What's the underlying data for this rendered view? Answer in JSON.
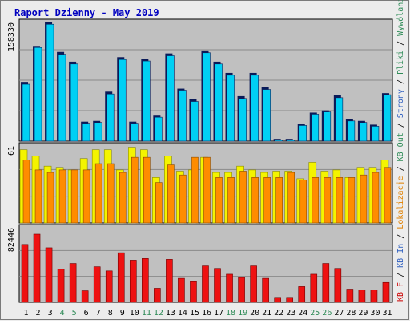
{
  "chart_title": "Raport Dzienny -  May 2019",
  "colors": {
    "background": "#ececec",
    "plot_bg": "#c0c0c0",
    "frame": "#000000",
    "title": "#0000c0",
    "grid": "#8a8a8a",
    "dark_blue": "#0a1a58",
    "cyan": "#00d0f4",
    "yellow": "#f4f400",
    "orange": "#ff8c00",
    "red": "#ee1111",
    "text_red": "#cc0000",
    "text_orange": "#e08000",
    "text_blue": "#3060c0",
    "text_green": "#2e8b57"
  },
  "right_legend": [
    {
      "text": "Wywólania",
      "color_key": "text_green"
    },
    {
      "text": " / ",
      "color_key": "frame"
    },
    {
      "text": "Pliki",
      "color_key": "text_green"
    },
    {
      "text": " / ",
      "color_key": "frame"
    },
    {
      "text": "Strony",
      "color_key": "text_blue"
    },
    {
      "text": " / ",
      "color_key": "frame"
    },
    {
      "text": "KB Out",
      "color_key": "text_green"
    },
    {
      "text": " / ",
      "color_key": "frame"
    },
    {
      "text": "Lokalizacje",
      "color_key": "text_orange"
    },
    {
      "text": " / ",
      "color_key": "frame"
    },
    {
      "text": "KB In",
      "color_key": "text_blue"
    },
    {
      "text": " / ",
      "color_key": "frame"
    },
    {
      "text": "KB F",
      "color_key": "text_red"
    }
  ],
  "chart_data": {
    "type": "bar",
    "title": "Raport Dzienny -  May 2019",
    "categories": [
      "1",
      "2",
      "3",
      "4",
      "5",
      "6",
      "7",
      "8",
      "9",
      "10",
      "11",
      "12",
      "13",
      "14",
      "15",
      "16",
      "17",
      "18",
      "19",
      "20",
      "21",
      "22",
      "23",
      "24",
      "25",
      "26",
      "27",
      "28",
      "29",
      "30",
      "31"
    ],
    "weekend_days": [
      "4",
      "5",
      "11",
      "12",
      "18",
      "19",
      "25",
      "26"
    ],
    "panels": [
      {
        "id": "top",
        "axis_label": "158330",
        "ylim": [
          0,
          158330
        ],
        "series": [
          {
            "values": [
              79000,
              127000,
              158330,
              119000,
              106000,
              26000,
              27000,
              66000,
              112000,
              26000,
              110000,
              34000,
              117000,
              70000,
              56000,
              121000,
              106000,
              91000,
              60000,
              91000,
              72000,
              3000,
              3000,
              23000,
              38000,
              41000,
              61000,
              29000,
              27000,
              22000,
              64000
            ]
          },
          {
            "values": [
              77000,
              126000,
              157000,
              117000,
              104000,
              25000,
              26000,
              64000,
              110000,
              25000,
              108000,
              33000,
              115000,
              69000,
              54000,
              119000,
              104000,
              89000,
              58000,
              89000,
              70000,
              2500,
              2500,
              22000,
              37000,
              40000,
              59000,
              28000,
              26000,
              21000,
              63000
            ]
          }
        ]
      },
      {
        "id": "middle",
        "axis_label": "61",
        "ylim": [
          0,
          61
        ],
        "series": [
          {
            "values": [
              58,
              53,
              45,
              44,
              42,
              51,
              58,
              58,
              42,
              60,
              58,
              36,
              53,
              41,
              42,
              52,
              40,
              40,
              45,
              42,
              40,
              41,
              41,
              35,
              48,
              41,
              42,
              36,
              44,
              44,
              50
            ]
          },
          {
            "values": [
              50,
              42,
              40,
              42,
              42,
              42,
              47,
              47,
              40,
              52,
              52,
              32,
              46,
              38,
              52,
              52,
              36,
              36,
              41,
              36,
              36,
              36,
              40,
              34,
              36,
              36,
              36,
              36,
              38,
              40,
              44
            ]
          }
        ]
      },
      {
        "id": "bottom",
        "axis_label": "82446",
        "ylim": [
          0,
          82446
        ],
        "series": [
          {
            "values": [
              70000,
              82446,
              66000,
              40000,
              47000,
              14000,
              43000,
              38000,
              60000,
              51000,
              53000,
              17000,
              52000,
              29000,
              25000,
              44000,
              41000,
              34000,
              30000,
              44000,
              29000,
              6000,
              6000,
              19000,
              34000,
              47000,
              41000,
              16000,
              15000,
              15000,
              24000
            ]
          }
        ]
      }
    ]
  }
}
